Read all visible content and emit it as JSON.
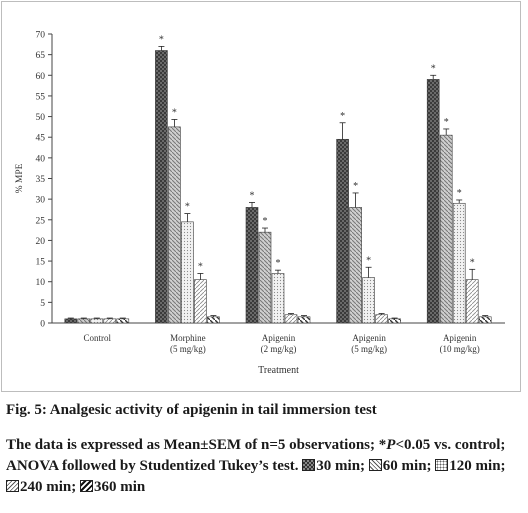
{
  "chart_data": {
    "type": "bar",
    "ylabel": "% MPE",
    "xlabel": "Treatment",
    "ylim": [
      0,
      70
    ],
    "yticks": [
      0,
      5,
      10,
      15,
      20,
      25,
      30,
      35,
      40,
      45,
      50,
      55,
      60,
      65,
      70
    ],
    "categories": [
      "Control",
      "Morphine (5 mg/kg)",
      "Apigenin (2 mg/kg)",
      "Apigenin (5 mg/kg)",
      "Apigenin (10 mg/kg)"
    ],
    "series": [
      {
        "name": "30 min",
        "color": "#555555",
        "pattern": "dense-check",
        "values": [
          1.0,
          66.0,
          28.0,
          44.5,
          59.0
        ],
        "errors": [
          0.2,
          1.0,
          1.2,
          4.0,
          1.0
        ],
        "significant": [
          false,
          true,
          true,
          true,
          true
        ]
      },
      {
        "name": "60 min",
        "color": "#bdbdbd",
        "pattern": "diag-back",
        "values": [
          1.0,
          47.5,
          22.0,
          28.0,
          45.5
        ],
        "errors": [
          0.2,
          1.8,
          1.0,
          3.5,
          1.5
        ],
        "significant": [
          false,
          true,
          true,
          true,
          true
        ]
      },
      {
        "name": "120 min",
        "color": "#e4e4e4",
        "pattern": "dots",
        "values": [
          1.0,
          24.5,
          12.0,
          11.0,
          29.0
        ],
        "errors": [
          0.2,
          2.0,
          0.8,
          2.5,
          0.8
        ],
        "significant": [
          false,
          true,
          true,
          true,
          true
        ]
      },
      {
        "name": "240 min",
        "color": "#f2f2f2",
        "pattern": "diag-fwd",
        "values": [
          1.0,
          10.5,
          2.0,
          2.0,
          10.5
        ],
        "errors": [
          0.2,
          1.5,
          0.3,
          0.3,
          2.5
        ],
        "significant": [
          false,
          true,
          false,
          false,
          true
        ]
      },
      {
        "name": "360 min",
        "color": "#f4f4f4",
        "pattern": "diag-heavy",
        "values": [
          1.0,
          1.5,
          1.5,
          1.0,
          1.5
        ],
        "errors": [
          0.2,
          0.3,
          0.3,
          0.2,
          0.3
        ],
        "significant": [
          false,
          false,
          false,
          false,
          false
        ]
      }
    ],
    "significance_marker": "*"
  },
  "caption": {
    "title": "Fig. 5: Analgesic activity of apigenin in tail immersion test",
    "note_main": "The data is expressed as Mean±SEM of n=5 observations; *",
    "note_p": "P",
    "note_rest": "<0.05 vs. control; ANOVA followed by Studentized Tukey’s test.",
    "legend": [
      {
        "label": "30 min;",
        "pattern": "dense-check"
      },
      {
        "label": "60 min;",
        "pattern": "diag-back"
      },
      {
        "label": "120 min;",
        "pattern": "dots"
      },
      {
        "label": "240 min;",
        "pattern": "diag-fwd"
      },
      {
        "label": "360 min",
        "pattern": "diag-heavy"
      }
    ]
  }
}
